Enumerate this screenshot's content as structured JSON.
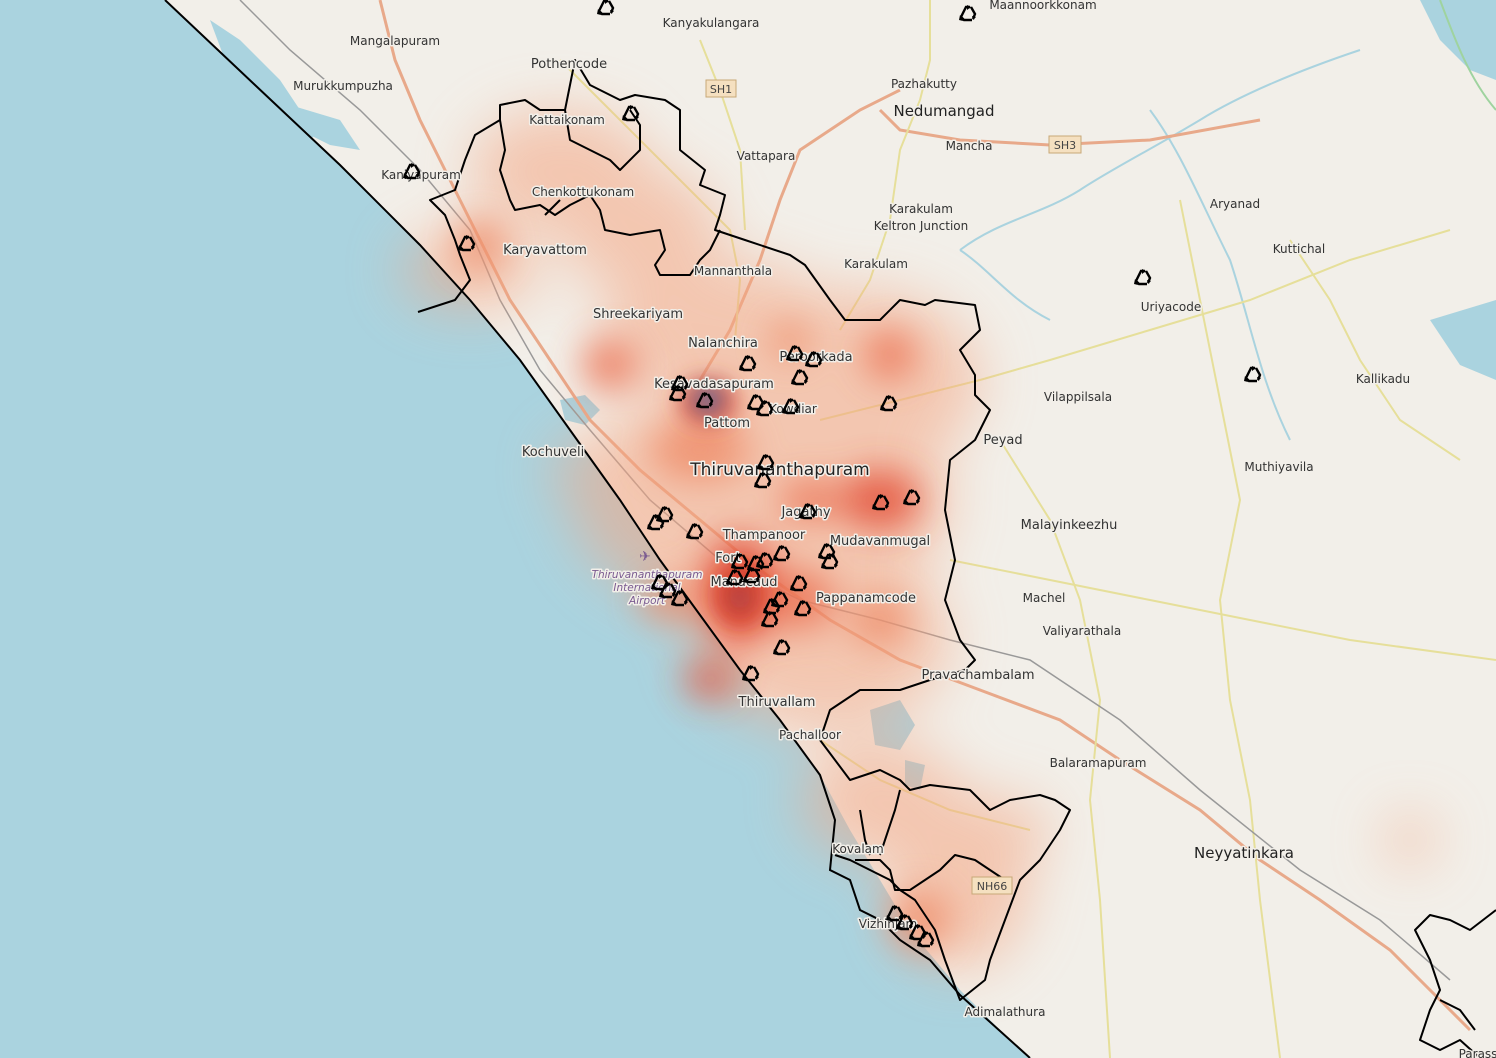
{
  "map": {
    "colors": {
      "land": "#f2efe9",
      "sea": "#aad3df",
      "major_road": "#e8a98a",
      "secondary_road": "#f6f7c8",
      "minor_road": "#ffffff",
      "boundary": "#000000",
      "heat_low": "#f4a582",
      "heat_mid": "#e34a33",
      "heat_high": "#3a86c8",
      "water": "#aad3df"
    },
    "place_labels": [
      {
        "id": "kanyakulangara",
        "text": "Kanyakulangara"
      },
      {
        "id": "maannoorkkonam",
        "text": "Maannoorkkonam"
      },
      {
        "id": "mangalapuram",
        "text": "Mangalapuram"
      },
      {
        "id": "pothencode",
        "text": "Pothencode"
      },
      {
        "id": "pazhakutty",
        "text": "Pazhakutty"
      },
      {
        "id": "nedumangad",
        "text": "Nedumangad"
      },
      {
        "id": "murukkumpuzha",
        "text": "Murukkumpuzha"
      },
      {
        "id": "kattaikonam",
        "text": "Kattaikonam"
      },
      {
        "id": "vattapara",
        "text": "Vattapara"
      },
      {
        "id": "mancha",
        "text": "Mancha"
      },
      {
        "id": "kaniyapuram",
        "text": "Kaniyapuram"
      },
      {
        "id": "chenkottukonam",
        "text": "Chenkottukonam"
      },
      {
        "id": "aryanad",
        "text": "Aryanad"
      },
      {
        "id": "karakulam1",
        "text": "Karakulam"
      },
      {
        "id": "keltron",
        "text": "Keltron Junction"
      },
      {
        "id": "karyavattom",
        "text": "Karyavattom"
      },
      {
        "id": "kuttichal",
        "text": "Kuttichal"
      },
      {
        "id": "mannanthala",
        "text": "Mannanthala"
      },
      {
        "id": "karakulam2",
        "text": "Karakulam"
      },
      {
        "id": "uriyacode",
        "text": "Uriyacode"
      },
      {
        "id": "shreekariyam",
        "text": "Shreekariyam"
      },
      {
        "id": "nalanchira",
        "text": "Nalanchira"
      },
      {
        "id": "peroorkada",
        "text": "Peroorkada"
      },
      {
        "id": "kallikadu",
        "text": "Kallikadu"
      },
      {
        "id": "kesavadasapuram",
        "text": "Kesavadasapuram"
      },
      {
        "id": "vilappilsala",
        "text": "Vilappilsala"
      },
      {
        "id": "kowdiar",
        "text": "Kowdiar"
      },
      {
        "id": "pattom",
        "text": "Pattom"
      },
      {
        "id": "peyad",
        "text": "Peyad"
      },
      {
        "id": "kochuveli",
        "text": "Kochuveli"
      },
      {
        "id": "thiruvananthapuram",
        "text": "Thiruvananthapuram"
      },
      {
        "id": "muthiyavila",
        "text": "Muthiyavila"
      },
      {
        "id": "jagathy",
        "text": "Jagathy"
      },
      {
        "id": "malayinkeezhu",
        "text": "Malayinkeezhu"
      },
      {
        "id": "thampanoor",
        "text": "Thampanoor"
      },
      {
        "id": "mudavanmugal",
        "text": "Mudavanmugal"
      },
      {
        "id": "fort",
        "text": "Fort"
      },
      {
        "id": "manacaud",
        "text": "Manacaud"
      },
      {
        "id": "machel",
        "text": "Machel"
      },
      {
        "id": "pappanamcode",
        "text": "Pappanamcode"
      },
      {
        "id": "valiyarathala",
        "text": "Valiyarathala"
      },
      {
        "id": "pravachambalam",
        "text": "Pravachambalam"
      },
      {
        "id": "thiruvallam",
        "text": "Thiruvallam"
      },
      {
        "id": "pachalloor",
        "text": "Pachalloor"
      },
      {
        "id": "balaramapuram",
        "text": "Balaramapuram"
      },
      {
        "id": "kovalam",
        "text": "Kovalam"
      },
      {
        "id": "neyyatinkara",
        "text": "Neyyatinkara"
      },
      {
        "id": "vizhinjam",
        "text": "Vizhinjam"
      },
      {
        "id": "adimalathura",
        "text": "Adimalathura"
      },
      {
        "id": "parassala",
        "text": "Parass"
      }
    ],
    "airport_label": [
      "Thiruvananthapuram",
      "International",
      "Airport"
    ],
    "road_shields": [
      {
        "id": "sh1",
        "text": "SH1"
      },
      {
        "id": "sh3",
        "text": "SH3"
      },
      {
        "id": "nh66",
        "text": "NH66"
      }
    ],
    "recycle_marker_icon": "recycle-icon",
    "recycle_marker_count": 62
  }
}
